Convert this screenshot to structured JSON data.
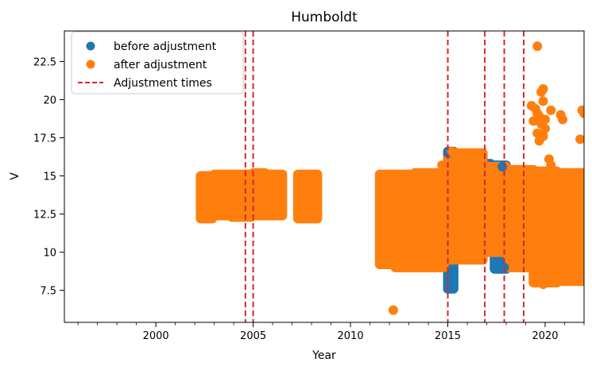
{
  "chart_data": {
    "type": "scatter",
    "title": "Humboldt",
    "xlabel": "Year",
    "ylabel": "V",
    "xlim": [
      1995.3,
      2022.0
    ],
    "ylim": [
      5.4,
      24.5
    ],
    "xticks": [
      2000,
      2005,
      2010,
      2015,
      2020
    ],
    "yticks": [
      7.5,
      10.0,
      12.5,
      15.0,
      17.5,
      20.0,
      22.5
    ],
    "grid": false,
    "legend_position": "top-left",
    "series": [
      {
        "name": "before adjustment",
        "color": "#1f77b4",
        "marker": "circle",
        "clusters": [
          {
            "x": [
              2015.0,
              2015.3
            ],
            "y": [
              7.6,
              16.6
            ]
          },
          {
            "x": [
              2016.9,
              2017.2
            ],
            "y": [
              11.5,
              15.8
            ]
          },
          {
            "x": [
              2017.4,
              2018.0
            ],
            "y": [
              8.9,
              15.7
            ]
          },
          {
            "x": [
              2018.8,
              2019.1
            ],
            "y": [
              11.0,
              15.4
            ]
          }
        ],
        "points": [
          {
            "x": 2015.0,
            "y": 8.1
          },
          {
            "x": 2015.0,
            "y": 7.6
          },
          {
            "x": 2015.0,
            "y": 16.5
          },
          {
            "x": 2017.8,
            "y": 15.6
          },
          {
            "x": 2017.9,
            "y": 9.0
          }
        ]
      },
      {
        "name": "after adjustment",
        "color": "#ff7f0e",
        "marker": "circle",
        "clusters": [
          {
            "x": [
              2002.3,
              2002.9
            ],
            "y": [
              12.2,
              15.0
            ]
          },
          {
            "x": [
              2003.0,
              2003.8
            ],
            "y": [
              12.4,
              15.1
            ]
          },
          {
            "x": [
              2003.9,
              2004.9
            ],
            "y": [
              12.3,
              15.1
            ]
          },
          {
            "x": [
              2005.0,
              2005.6
            ],
            "y": [
              12.4,
              15.2
            ]
          },
          {
            "x": [
              2005.7,
              2006.5
            ],
            "y": [
              12.4,
              15.1
            ]
          },
          {
            "x": [
              2007.3,
              2008.3
            ],
            "y": [
              12.2,
              15.1
            ]
          },
          {
            "x": [
              2011.5,
              2012.2
            ],
            "y": [
              9.2,
              15.1
            ]
          },
          {
            "x": [
              2012.3,
              2013.2
            ],
            "y": [
              9.0,
              15.1
            ]
          },
          {
            "x": [
              2013.3,
              2014.8
            ],
            "y": [
              9.0,
              15.2
            ]
          },
          {
            "x": [
              2015.0,
              2016.8
            ],
            "y": [
              9.5,
              16.5
            ]
          },
          {
            "x": [
              2016.9,
              2018.0
            ],
            "y": [
              10.0,
              15.6
            ]
          },
          {
            "x": [
              2018.1,
              2019.4
            ],
            "y": [
              9.0,
              15.4
            ]
          },
          {
            "x": [
              2019.4,
              2020.6
            ],
            "y": [
              8.0,
              15.3
            ]
          },
          {
            "x": [
              2020.6,
              2022.0
            ],
            "y": [
              8.1,
              15.2
            ]
          }
        ],
        "points": [
          {
            "x": 2012.2,
            "y": 6.2
          },
          {
            "x": 2014.7,
            "y": 15.7
          },
          {
            "x": 2015.2,
            "y": 16.6
          },
          {
            "x": 2015.3,
            "y": 15.8
          },
          {
            "x": 2016.8,
            "y": 16.3
          },
          {
            "x": 2019.6,
            "y": 23.5
          },
          {
            "x": 2019.3,
            "y": 19.6
          },
          {
            "x": 2019.4,
            "y": 18.6
          },
          {
            "x": 2019.6,
            "y": 19.1
          },
          {
            "x": 2019.8,
            "y": 20.5
          },
          {
            "x": 2019.9,
            "y": 20.7
          },
          {
            "x": 2019.7,
            "y": 18.9
          },
          {
            "x": 2019.8,
            "y": 18.4
          },
          {
            "x": 2019.6,
            "y": 17.8
          },
          {
            "x": 2019.9,
            "y": 19.9
          },
          {
            "x": 2019.5,
            "y": 19.4
          },
          {
            "x": 2020.0,
            "y": 18.7
          },
          {
            "x": 2019.7,
            "y": 17.3
          },
          {
            "x": 2019.9,
            "y": 17.6
          },
          {
            "x": 2020.0,
            "y": 18.1
          },
          {
            "x": 2020.2,
            "y": 16.1
          },
          {
            "x": 2020.3,
            "y": 15.7
          },
          {
            "x": 2020.3,
            "y": 19.3
          },
          {
            "x": 2020.5,
            "y": 11.6
          },
          {
            "x": 2020.4,
            "y": 12.8
          },
          {
            "x": 2020.6,
            "y": 10.7
          },
          {
            "x": 2020.4,
            "y": 9.7
          },
          {
            "x": 2020.9,
            "y": 18.7
          },
          {
            "x": 2020.8,
            "y": 19.0
          },
          {
            "x": 2021.9,
            "y": 19.3
          },
          {
            "x": 2022.0,
            "y": 19.1
          },
          {
            "x": 2021.8,
            "y": 17.4
          },
          {
            "x": 2021.2,
            "y": 12.5
          },
          {
            "x": 2021.3,
            "y": 14.0
          },
          {
            "x": 2021.8,
            "y": 10.5
          },
          {
            "x": 2021.7,
            "y": 8.1
          },
          {
            "x": 2022.0,
            "y": 9.0
          },
          {
            "x": 2019.5,
            "y": 8.5
          },
          {
            "x": 2019.9,
            "y": 7.9
          }
        ]
      }
    ],
    "vlines": {
      "name": "Adjustment times",
      "color": "#d62728",
      "style": "dashed",
      "x": [
        2004.6,
        2005.0,
        2015.0,
        2016.9,
        2017.9,
        2018.9
      ]
    }
  }
}
